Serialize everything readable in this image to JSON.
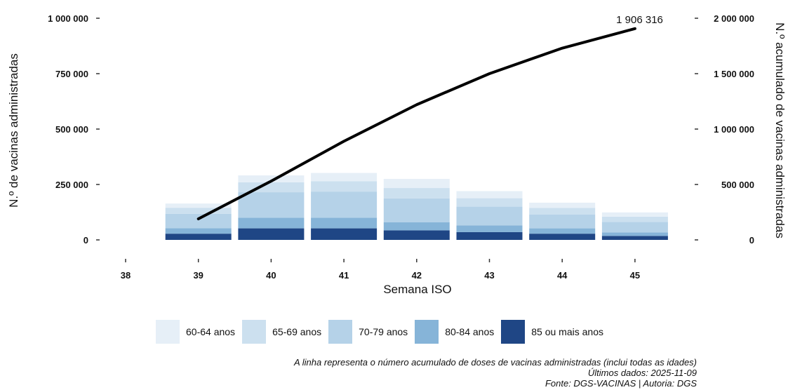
{
  "chart_data": {
    "type": "bar",
    "stacked": true,
    "xlabel": "Semana ISO",
    "ylabel": "N.º de vacinas administradas",
    "y2label": "N.º acumulado de vacinas administradas",
    "categories": [
      "38",
      "39",
      "40",
      "41",
      "42",
      "43",
      "44",
      "45"
    ],
    "ylim": [
      0,
      1000000
    ],
    "y2lim": [
      0,
      2000000
    ],
    "yticks": [
      {
        "value": 0,
        "label": "0"
      },
      {
        "value": 250000,
        "label": "250 000"
      },
      {
        "value": 500000,
        "label": "500 000"
      },
      {
        "value": 750000,
        "label": "750 000"
      },
      {
        "value": 1000000,
        "label": "1 000 000"
      }
    ],
    "y2ticks": [
      {
        "value": 0,
        "label": "0"
      },
      {
        "value": 500000,
        "label": "500 000"
      },
      {
        "value": 1000000,
        "label": "1 000 000"
      },
      {
        "value": 1500000,
        "label": "1 500 000"
      },
      {
        "value": 2000000,
        "label": "2 000 000"
      }
    ],
    "series": [
      {
        "name": "85 ou mais anos",
        "color": "#1f4685",
        "values": [
          0,
          28000,
          52000,
          52000,
          43000,
          35000,
          28000,
          18000
        ]
      },
      {
        "name": "80-84 anos",
        "color": "#86b4d8",
        "values": [
          0,
          25000,
          48000,
          48000,
          37000,
          30000,
          24000,
          16000
        ]
      },
      {
        "name": "70-79 anos",
        "color": "#b5d2e8",
        "values": [
          0,
          65000,
          115000,
          118000,
          107000,
          85000,
          63000,
          47000
        ]
      },
      {
        "name": "65-69 anos",
        "color": "#cce0ef",
        "values": [
          0,
          27000,
          45000,
          47000,
          47000,
          38000,
          29000,
          24000
        ]
      },
      {
        "name": "60-64 anos",
        "color": "#e6eff7",
        "values": [
          0,
          19000,
          31000,
          37000,
          41000,
          32000,
          24000,
          19000
        ]
      }
    ],
    "cumulative": {
      "categories": [
        "39",
        "40",
        "41",
        "42",
        "43",
        "44",
        "45"
      ],
      "values": [
        190000,
        530000,
        890000,
        1220000,
        1500000,
        1730000,
        1906316
      ],
      "color": "#000000",
      "last_label": "1 906 316"
    },
    "legend_position": "bottom",
    "grid": false
  },
  "notes": [
    "A linha representa o número acumulado de doses de vacinas administradas (inclui todas as idades)",
    "Últimos dados: 2025-11-09",
    "Fonte: DGS-VACINAS | Autoria: DGS"
  ]
}
